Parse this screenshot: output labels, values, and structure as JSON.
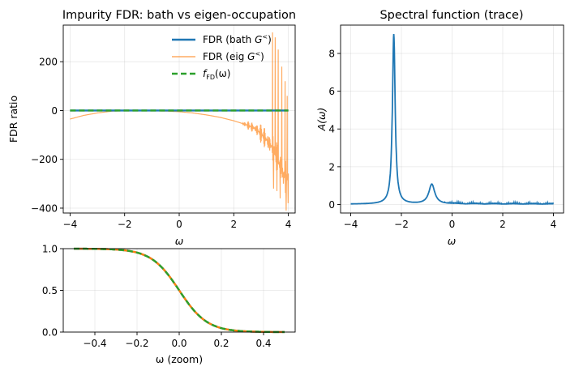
{
  "chart_data": [
    {
      "id": "fdr",
      "type": "line",
      "title": "Impurity FDR: bath vs eigen-occupation",
      "xlabel": "ω",
      "ylabel": "FDR ratio",
      "xlim": [
        -4.25,
        4.25
      ],
      "ylim": [
        -420,
        350
      ],
      "xticks": [
        -4,
        -2,
        0,
        2,
        4
      ],
      "xtick_labels": [
        "−4",
        "−2",
        "0",
        "2",
        "4"
      ],
      "yticks": [
        -400,
        -200,
        0,
        200
      ],
      "ytick_labels": [
        "−400",
        "−200",
        "0",
        "200"
      ],
      "grid": true,
      "legend": {
        "position": "upper-right",
        "entries": [
          {
            "label_prefix": "FDR (bath ",
            "label_sym": "G",
            "label_sup": "<",
            "label_suffix": ")",
            "color": "#1f77b4",
            "style": "solid"
          },
          {
            "label_prefix": "FDR (eig ",
            "label_sym": "G",
            "label_sup": "<",
            "label_suffix": ")",
            "color": "#ff7f0e",
            "style": "solid-alpha"
          },
          {
            "label_prefix": "f",
            "label_sub": "FD",
            "label_suffix": "(ω)",
            "color": "#2ca02c",
            "style": "dashed"
          }
        ]
      },
      "series": [
        {
          "name": "FDR (bath G<)",
          "color": "#1f77b4",
          "x": [
            -4,
            4
          ],
          "y": [
            0,
            0
          ]
        },
        {
          "name": "FDR (eig G<)",
          "color": "#ff7f0e",
          "alpha": 0.65,
          "x": [
            -4,
            -3.5,
            -3,
            -2.5,
            -2,
            -1.5,
            -1,
            -0.5,
            0,
            0.5,
            1,
            1.5,
            2,
            2.5,
            2.8,
            3.0,
            3.2,
            3.4,
            3.5,
            3.6,
            3.7,
            3.8,
            3.9,
            4.0
          ],
          "y": [
            -35,
            -20,
            -10,
            -3,
            0,
            0,
            -1,
            -2,
            -5,
            -10,
            -18,
            -28,
            -42,
            -60,
            -75,
            -95,
            -120,
            -150,
            -175,
            -200,
            -230,
            -255,
            -275,
            -285
          ],
          "spikes": [
            [
              3.42,
              320
            ],
            [
              3.46,
              -320
            ],
            [
              3.52,
              300
            ],
            [
              3.58,
              -330
            ],
            [
              3.63,
              250
            ],
            [
              3.7,
              -360
            ],
            [
              3.76,
              180
            ],
            [
              3.82,
              -300
            ],
            [
              3.88,
              120
            ],
            [
              3.92,
              -410
            ],
            [
              3.96,
              60
            ],
            [
              3.99,
              -380
            ]
          ]
        },
        {
          "name": "f_FD(ω)",
          "color": "#2ca02c",
          "x": [
            -4,
            4
          ],
          "y": [
            0,
            0
          ]
        }
      ]
    },
    {
      "id": "spec",
      "type": "line",
      "title": "Spectral function (trace)",
      "xlabel": "ω",
      "ylabel": "A(ω)",
      "xlim": [
        -4.4,
        4.4
      ],
      "ylim": [
        -0.45,
        9.5
      ],
      "xticks": [
        -4,
        -2,
        0,
        2,
        4
      ],
      "xtick_labels": [
        "−4",
        "−2",
        "0",
        "2",
        "4"
      ],
      "yticks": [
        0,
        2,
        4,
        6,
        8
      ],
      "ytick_labels": [
        "0",
        "2",
        "4",
        "6",
        "8"
      ],
      "grid": true,
      "series": [
        {
          "name": "A(ω)",
          "color": "#1f77b4",
          "peaks": [
            {
              "center": -2.3,
              "width": 0.065,
              "height": 9.0
            },
            {
              "center": -0.8,
              "width": 0.14,
              "height": 1.05
            }
          ],
          "x_range": [
            -4,
            4
          ]
        }
      ]
    },
    {
      "id": "zoom",
      "type": "line",
      "title": "",
      "xlabel": "ω (zoom)",
      "ylabel": "",
      "xlim": [
        -0.55,
        0.55
      ],
      "ylim": [
        0,
        1
      ],
      "xticks": [
        -0.4,
        -0.2,
        0,
        0.2,
        0.4
      ],
      "xtick_labels": [
        "−0.4",
        "−0.2",
        "0.0",
        "0.2",
        "0.4"
      ],
      "yticks": [
        0,
        0.5,
        1
      ],
      "ytick_labels": [
        "0.0",
        "0.5",
        "1.0"
      ],
      "grid": true,
      "beta": 15,
      "series": [
        {
          "name": "FDR (bath G<)",
          "color": "#1f77b4",
          "style": "solid"
        },
        {
          "name": "FDR (eig G<)",
          "color": "#ff7f0e",
          "style": "solid"
        },
        {
          "name": "f_FD(ω)",
          "color": "#2ca02c",
          "style": "dashed"
        }
      ],
      "x_range": [
        -0.5,
        0.5
      ]
    }
  ]
}
